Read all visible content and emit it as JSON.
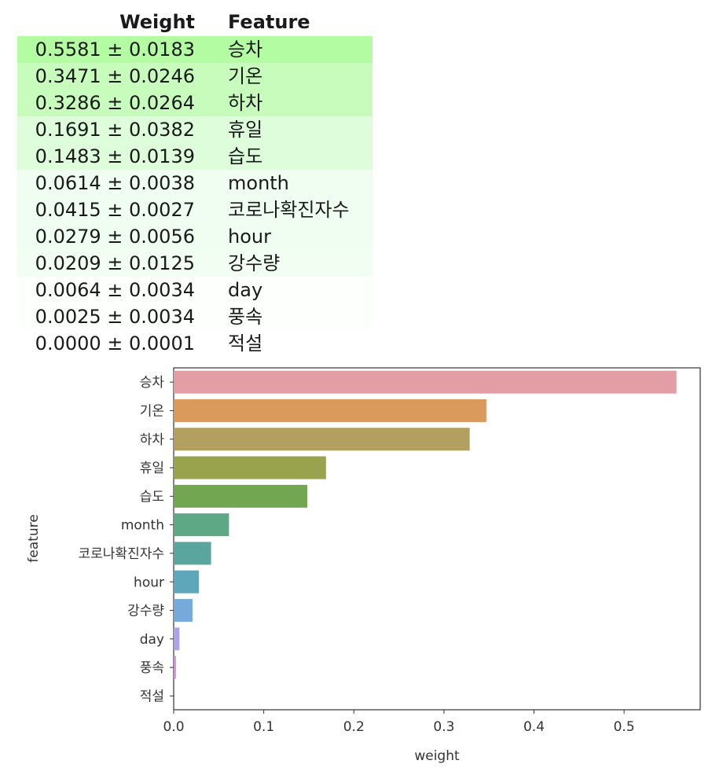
{
  "table": {
    "headers": {
      "weight": "Weight",
      "feature": "Feature"
    },
    "rows": [
      {
        "weight": "0.5581 ± 0.0183",
        "feature": "승차",
        "bg": "#b3fca2"
      },
      {
        "weight": "0.3471 ± 0.0246",
        "feature": "기온",
        "bg": "#c8fcbd"
      },
      {
        "weight": "0.3286 ± 0.0264",
        "feature": "하차",
        "bg": "#c8fcbd"
      },
      {
        "weight": "0.1691 ± 0.0382",
        "feature": "휴일",
        "bg": "#defddb"
      },
      {
        "weight": "0.1483 ± 0.0139",
        "feature": "습도",
        "bg": "#defddb"
      },
      {
        "weight": "0.0614 ± 0.0038",
        "feature": "month",
        "bg": "#effef0"
      },
      {
        "weight": "0.0415 ± 0.0027",
        "feature": "코로나확진자수",
        "bg": "#effef0"
      },
      {
        "weight": "0.0279 ± 0.0056",
        "feature": "hour",
        "bg": "#effef0"
      },
      {
        "weight": "0.0209 ± 0.0125",
        "feature": "강수량",
        "bg": "#f3fef3"
      },
      {
        "weight": "0.0064 ± 0.0034",
        "feature": "day",
        "bg": "#fcfffc"
      },
      {
        "weight": "0.0025 ± 0.0034",
        "feature": "풍속",
        "bg": "#fdfffd"
      },
      {
        "weight": "0.0000 ± 0.0001",
        "feature": "적설",
        "bg": "#ffffff"
      }
    ]
  },
  "chart_data": {
    "type": "bar",
    "orientation": "horizontal",
    "categories": [
      "승차",
      "기온",
      "하차",
      "휴일",
      "습도",
      "month",
      "코로나확진자수",
      "hour",
      "강수량",
      "day",
      "풍속",
      "적설"
    ],
    "values": [
      0.5581,
      0.3471,
      0.3286,
      0.1691,
      0.1483,
      0.0614,
      0.0415,
      0.0279,
      0.0209,
      0.0064,
      0.0025,
      0.0
    ],
    "colors": [
      "#e29da5",
      "#d99a5c",
      "#b3a05e",
      "#99a24d",
      "#73a650",
      "#5ea885",
      "#5aa59e",
      "#5ea6b9",
      "#76a9dc",
      "#b0a1ed",
      "#db88e2",
      "#e391c9"
    ],
    "xlabel": "weight",
    "ylabel": "feature",
    "xlim": [
      0,
      0.5845
    ],
    "xticks": [
      0.0,
      0.1,
      0.2,
      0.3,
      0.4,
      0.5
    ],
    "xtick_labels": [
      "0.0",
      "0.1",
      "0.2",
      "0.3",
      "0.4",
      "0.5"
    ],
    "grid": false
  }
}
